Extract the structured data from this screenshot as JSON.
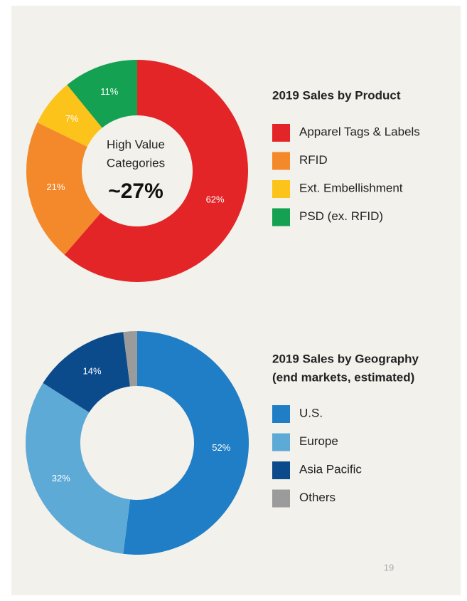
{
  "chart_data": [
    {
      "type": "donut",
      "title": "2019 Sales by Product",
      "categories": [
        "Apparel Tags & Labels",
        "RFID",
        "Ext. Embellishment",
        "PSD (ex. RFID)"
      ],
      "values": [
        62,
        21,
        7,
        11
      ],
      "value_labels": [
        "62%",
        "21%",
        "7%",
        "11%"
      ],
      "colors": [
        "#e42527",
        "#f4892c",
        "#fcc31a",
        "#14a152"
      ],
      "annotation": [
        "High Value",
        "Categories",
        "~27%"
      ]
    },
    {
      "type": "donut",
      "title": "2019 Sales by Geography",
      "subtitle": "(end markets, estimated)",
      "categories": [
        "U.S.",
        "Europe",
        "Asia Pacific",
        "Others"
      ],
      "values": [
        52,
        32,
        14,
        2
      ],
      "value_labels": [
        "52%",
        "32%",
        "14%",
        null
      ],
      "colors": [
        "#1f7ec6",
        "#5eaad6",
        "#0c4b8b",
        "#9b9b9b"
      ]
    }
  ],
  "page_number": "19"
}
